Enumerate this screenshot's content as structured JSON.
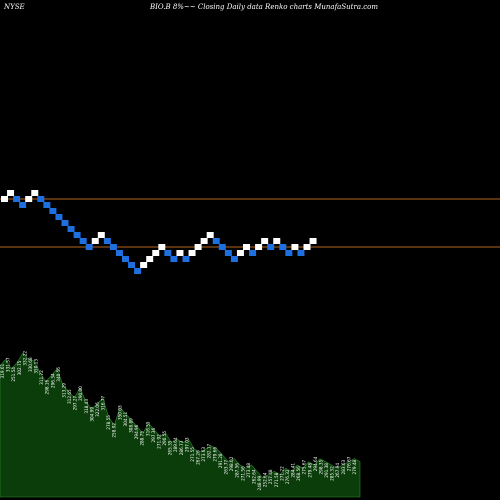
{
  "header": {
    "exchange": "NYSE",
    "caption": "BIO.B 8%~~ Closing Daily data Renko charts MunafaSutra.com"
  },
  "colors": {
    "background": "#000000",
    "up_brick": "#ffffff",
    "down_brick": "#1e6fe0",
    "level_line": "#b5651d",
    "volume_fill": "#0b3d0b",
    "volume_line": "#2e8b2e",
    "label_text": "#ffffff"
  },
  "chart_data": {
    "type": "renko",
    "bricks": [
      {
        "dir": "up",
        "level": 4
      },
      {
        "dir": "up",
        "level": 5
      },
      {
        "dir": "down",
        "level": 4
      },
      {
        "dir": "down",
        "level": 3
      },
      {
        "dir": "up",
        "level": 4
      },
      {
        "dir": "up",
        "level": 5
      },
      {
        "dir": "down",
        "level": 4
      },
      {
        "dir": "down",
        "level": 3
      },
      {
        "dir": "down",
        "level": 2
      },
      {
        "dir": "down",
        "level": 1
      },
      {
        "dir": "down",
        "level": 0
      },
      {
        "dir": "down",
        "level": -1
      },
      {
        "dir": "down",
        "level": -2
      },
      {
        "dir": "down",
        "level": -3
      },
      {
        "dir": "down",
        "level": -4
      },
      {
        "dir": "up",
        "level": -3
      },
      {
        "dir": "up",
        "level": -2
      },
      {
        "dir": "down",
        "level": -3
      },
      {
        "dir": "down",
        "level": -4
      },
      {
        "dir": "down",
        "level": -5
      },
      {
        "dir": "down",
        "level": -6
      },
      {
        "dir": "down",
        "level": -7
      },
      {
        "dir": "down",
        "level": -8
      },
      {
        "dir": "up",
        "level": -7
      },
      {
        "dir": "up",
        "level": -6
      },
      {
        "dir": "up",
        "level": -5
      },
      {
        "dir": "up",
        "level": -4
      },
      {
        "dir": "down",
        "level": -5
      },
      {
        "dir": "down",
        "level": -6
      },
      {
        "dir": "up",
        "level": -5
      },
      {
        "dir": "down",
        "level": -6
      },
      {
        "dir": "up",
        "level": -5
      },
      {
        "dir": "up",
        "level": -4
      },
      {
        "dir": "up",
        "level": -3
      },
      {
        "dir": "up",
        "level": -2
      },
      {
        "dir": "down",
        "level": -3
      },
      {
        "dir": "down",
        "level": -4
      },
      {
        "dir": "down",
        "level": -5
      },
      {
        "dir": "down",
        "level": -6
      },
      {
        "dir": "up",
        "level": -5
      },
      {
        "dir": "up",
        "level": -4
      },
      {
        "dir": "down",
        "level": -5
      },
      {
        "dir": "up",
        "level": -4
      },
      {
        "dir": "up",
        "level": -3
      },
      {
        "dir": "down",
        "level": -4
      },
      {
        "dir": "up",
        "level": -3
      },
      {
        "dir": "down",
        "level": -4
      },
      {
        "dir": "down",
        "level": -5
      },
      {
        "dir": "up",
        "level": -4
      },
      {
        "dir": "down",
        "level": -5
      },
      {
        "dir": "up",
        "level": -4
      },
      {
        "dir": "up",
        "level": -3
      }
    ],
    "reference_levels": [
      4,
      -4
    ],
    "volume_labels": [
      "319.61",
      "331.57",
      "251.54",
      "302.75",
      "332.22",
      "330.68",
      "350.13",
      "311.72",
      "298.16",
      "296.34",
      "340.56",
      "313.29",
      "312.65",
      "297.27",
      "290.00",
      "318.43",
      "304.99",
      "322.06",
      "316.77",
      "278.55",
      "258.92",
      "350.03",
      "304.51",
      "308.89",
      "294.96",
      "288.75",
      "316.55",
      "297.36",
      "271.92",
      "290.55",
      "265.35",
      "289.64",
      "286.73",
      "297.03",
      "271.55",
      "267.26",
      "273.63",
      "282.17",
      "279.66",
      "291.28",
      "263.77",
      "298.02",
      "287.56",
      "271.56",
      "273.48",
      "262.64",
      "248.99",
      "252.64",
      "257.48",
      "271.58",
      "271.22",
      "276.32",
      "284.41",
      "268.56",
      "275.67",
      "279.48",
      "294.64",
      "298.35",
      "291.38",
      "285.32",
      "267.94",
      "283.63",
      "276.67",
      "279.48"
    ],
    "volume_heights": [
      0.82,
      0.86,
      0.8,
      0.84,
      0.9,
      0.86,
      0.85,
      0.78,
      0.72,
      0.76,
      0.8,
      0.7,
      0.66,
      0.62,
      0.68,
      0.6,
      0.55,
      0.58,
      0.62,
      0.5,
      0.45,
      0.56,
      0.52,
      0.48,
      0.44,
      0.4,
      0.46,
      0.42,
      0.38,
      0.4,
      0.34,
      0.36,
      0.34,
      0.36,
      0.3,
      0.28,
      0.3,
      0.32,
      0.3,
      0.26,
      0.22,
      0.24,
      0.2,
      0.18,
      0.2,
      0.16,
      0.12,
      0.14,
      0.16,
      0.14,
      0.18,
      0.16,
      0.2,
      0.18,
      0.22,
      0.2,
      0.24,
      0.22,
      0.2,
      0.18,
      0.2,
      0.22,
      0.24,
      0.22
    ]
  }
}
